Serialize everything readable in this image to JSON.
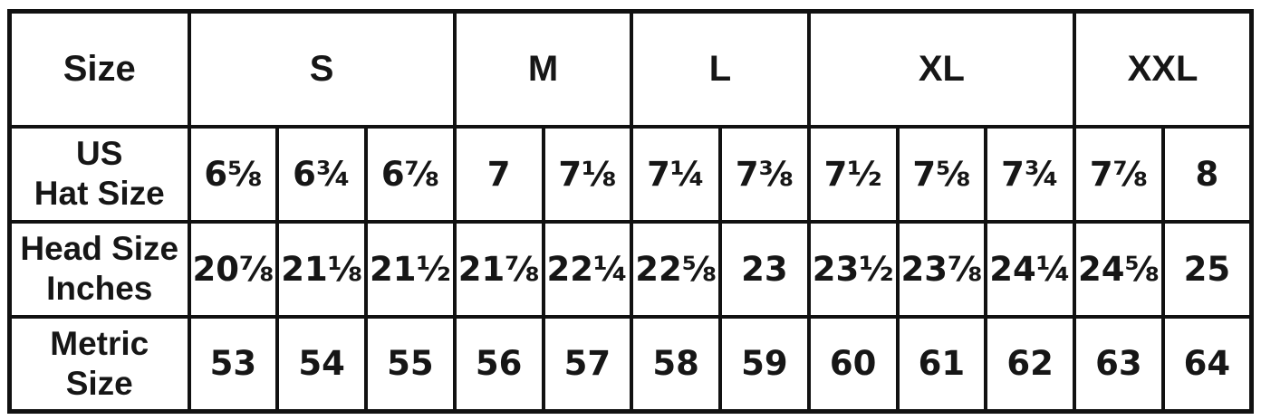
{
  "chart_data": {
    "type": "table",
    "description_of_content": "hat size conversion chart",
    "header": {
      "corner_label": "Size",
      "groups": [
        {
          "label": "S",
          "colspan": 3
        },
        {
          "label": "M",
          "colspan": 2
        },
        {
          "label": "L",
          "colspan": 2
        },
        {
          "label": "XL",
          "colspan": 3
        },
        {
          "label": "XXL",
          "colspan": 2
        }
      ]
    },
    "rows": [
      {
        "label": "US Hat Size",
        "label_lines": {
          "0": "US",
          "1": "Hat Size"
        },
        "values": [
          "6⅝",
          "6¾",
          "6⅞",
          "7",
          "7⅛",
          "7¼",
          "7⅜",
          "7½",
          "7⅝",
          "7¾",
          "7⅞",
          "8"
        ]
      },
      {
        "label": "Head Size Inches",
        "label_lines": {
          "0": "Head Size",
          "1": "Inches"
        },
        "values": [
          "20⅞",
          "21⅛",
          "21½",
          "21⅞",
          "22¼",
          "22⅝",
          "23",
          "23½",
          "23⅞",
          "24¼",
          "24⅝",
          "25"
        ]
      },
      {
        "label": "Metric Size",
        "label_lines": {
          "0": "Metric",
          "1": "Size"
        },
        "values": [
          "53",
          "54",
          "55",
          "56",
          "57",
          "58",
          "59",
          "60",
          "61",
          "62",
          "63",
          "64"
        ]
      }
    ],
    "layout": {
      "columns_per_data_row": 12,
      "grid": "on"
    },
    "colors": {
      "border": "#111111",
      "text": "#161616",
      "background": "#ffffff"
    }
  }
}
